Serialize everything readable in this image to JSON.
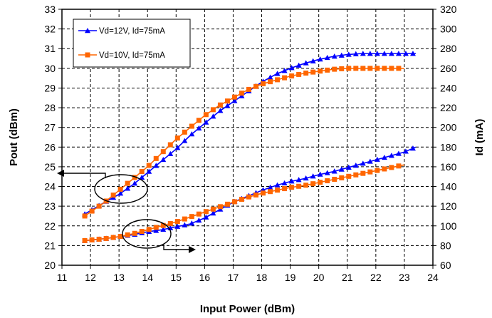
{
  "chart_data": {
    "type": "line",
    "xlabel": "Input Power (dBm)",
    "ylabel": "Pout (dBm)",
    "y2label": "Id (mA)",
    "xlim": [
      11,
      24
    ],
    "ylim": [
      20,
      33
    ],
    "y2lim": [
      60,
      320
    ],
    "xticks": [
      11,
      12,
      13,
      14,
      15,
      16,
      17,
      18,
      19,
      20,
      21,
      22,
      23,
      24
    ],
    "yticks": [
      20,
      21,
      22,
      23,
      24,
      25,
      26,
      27,
      28,
      29,
      30,
      31,
      32,
      33
    ],
    "y2ticks": [
      60,
      80,
      100,
      120,
      140,
      160,
      180,
      200,
      220,
      240,
      260,
      280,
      300,
      320
    ],
    "grid": true,
    "legend_position": "top-left",
    "series": [
      {
        "name": "Vd=12V, Id=75mA",
        "color": "#0000ff",
        "marker": "triangle",
        "axis": "left",
        "x": [
          11.8,
          12.5,
          13.0,
          13.5,
          14.0,
          14.5,
          15.0,
          15.5,
          16.0,
          16.5,
          17.0,
          17.5,
          18.0,
          18.5,
          19.0,
          19.5,
          20.0,
          20.5,
          21.0,
          21.5,
          22.0,
          22.5,
          23.0,
          23.4
        ],
        "values": [
          22.6,
          23.2,
          23.6,
          24.1,
          24.7,
          25.3,
          25.9,
          26.6,
          27.2,
          27.8,
          28.3,
          28.8,
          29.3,
          29.7,
          30.0,
          30.25,
          30.45,
          30.6,
          30.7,
          30.75,
          30.75,
          30.75,
          30.75,
          30.75
        ]
      },
      {
        "name": "Vd=10V, Id=75mA",
        "color": "#ff6600",
        "marker": "square",
        "axis": "left",
        "x": [
          11.8,
          12.5,
          13.0,
          13.5,
          14.0,
          14.5,
          15.0,
          15.5,
          16.0,
          16.5,
          17.0,
          17.5,
          18.0,
          18.5,
          19.0,
          19.5,
          20.0,
          20.5,
          21.0,
          21.5,
          22.0,
          22.5,
          23.0
        ],
        "values": [
          22.5,
          23.2,
          23.8,
          24.4,
          25.0,
          25.7,
          26.4,
          27.0,
          27.6,
          28.1,
          28.5,
          28.9,
          29.2,
          29.4,
          29.6,
          29.75,
          29.85,
          29.95,
          30.0,
          30.0,
          30.0,
          30.0,
          30.0
        ]
      },
      {
        "name": "Vd=12V, Id=75mA",
        "color": "#0000ff",
        "marker": "triangle",
        "axis": "right",
        "x": [
          11.8,
          12.5,
          13.0,
          13.5,
          14.0,
          14.5,
          15.0,
          15.5,
          16.0,
          16.5,
          17.0,
          17.5,
          18.0,
          18.5,
          19.0,
          19.5,
          20.0,
          20.5,
          21.0,
          21.5,
          22.0,
          22.5,
          23.0,
          23.4
        ],
        "values": [
          85,
          87,
          89,
          91,
          94,
          96,
          99,
          102,
          108,
          116,
          124,
          130,
          136,
          141,
          145,
          148,
          152,
          155,
          159,
          163,
          167,
          171,
          175,
          180
        ]
      },
      {
        "name": "Vd=10V, Id=75mA",
        "color": "#ff6600",
        "marker": "square",
        "axis": "right",
        "x": [
          11.8,
          12.5,
          13.0,
          13.5,
          14.0,
          14.5,
          15.0,
          15.5,
          16.0,
          16.5,
          17.0,
          17.5,
          18.0,
          18.5,
          19.0,
          19.5,
          20.0,
          20.5,
          21.0,
          21.5,
          22.0,
          22.5,
          23.0
        ],
        "values": [
          85,
          87,
          89,
          92,
          96,
          100,
          104,
          109,
          114,
          119,
          124,
          129,
          133,
          136,
          139,
          141,
          144,
          147,
          150,
          153,
          156,
          159,
          162
        ]
      }
    ],
    "annotations": [
      {
        "type": "ellipse-with-arrow",
        "points_to": "left axis (Pout)"
      },
      {
        "type": "ellipse-with-arrow",
        "points_to": "right axis (Id)"
      }
    ]
  }
}
